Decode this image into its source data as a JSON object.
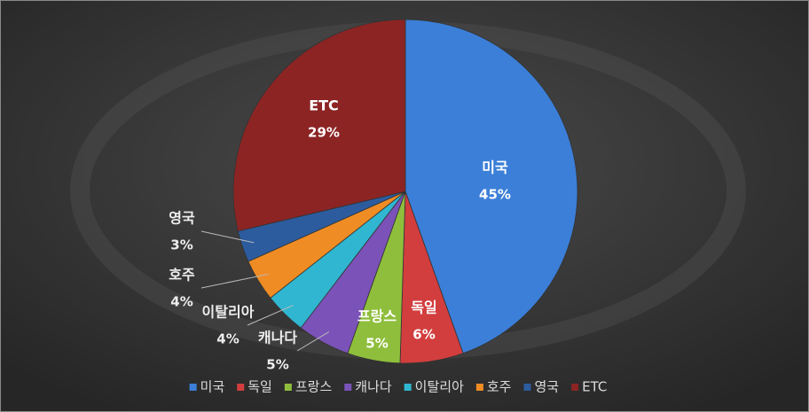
{
  "chart_data": {
    "type": "pie",
    "categories": [
      "미국",
      "독일",
      "프랑스",
      "캐나다",
      "이탈리아",
      "호주",
      "영국",
      "ETC"
    ],
    "values": [
      45,
      6,
      5,
      5,
      4,
      4,
      3,
      29
    ],
    "value_labels": [
      "45%",
      "6%",
      "5%",
      "5%",
      "4%",
      "4%",
      "3%",
      "29%"
    ],
    "colors": [
      "#3b7fd8",
      "#d23e3e",
      "#8fbe3c",
      "#7b52b8",
      "#30b6d0",
      "#f08c24",
      "#2c5c9e",
      "#8c2424"
    ],
    "legend": "bottom"
  }
}
